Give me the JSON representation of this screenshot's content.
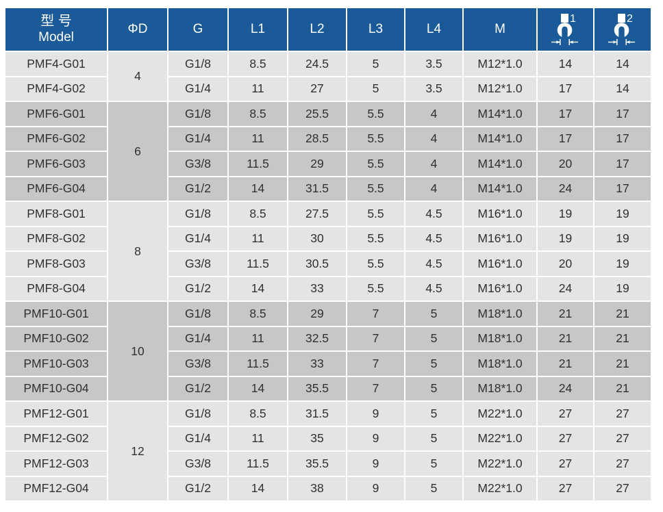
{
  "colors": {
    "page_bg": "#ffffff",
    "header_bg": "#1a5a99",
    "header_text": "#ffffff",
    "row_light": "#e4e4e4",
    "row_dark": "#c7c7c7",
    "body_text": "#303030"
  },
  "table": {
    "header": {
      "model_zh": "型 号",
      "model_en": "Model",
      "phi_d": "ΦD",
      "g": "G",
      "l1": "L1",
      "l2": "L2",
      "l3": "L3",
      "l4": "L4",
      "m": "M",
      "wrench1_label": "1",
      "wrench2_label": "2",
      "wrench_icon_meaning": "open-end-wrench-width-icon"
    }
  },
  "chart_data": {
    "type": "table",
    "columns": [
      "型号/Model",
      "ΦD",
      "G",
      "L1",
      "L2",
      "L3",
      "L4",
      "M",
      "wrench-1",
      "wrench-2"
    ],
    "rows": [
      [
        "PMF4-G01",
        "4",
        "G1/8",
        "8.5",
        "24.5",
        "5",
        "3.5",
        "M12*1.0",
        "14",
        "14"
      ],
      [
        "PMF4-G02",
        "4",
        "G1/4",
        "11",
        "27",
        "5",
        "3.5",
        "M12*1.0",
        "17",
        "14"
      ],
      [
        "PMF6-G01",
        "6",
        "G1/8",
        "8.5",
        "25.5",
        "5.5",
        "4",
        "M14*1.0",
        "17",
        "17"
      ],
      [
        "PMF6-G02",
        "6",
        "G1/4",
        "11",
        "28.5",
        "5.5",
        "4",
        "M14*1.0",
        "17",
        "17"
      ],
      [
        "PMF6-G03",
        "6",
        "G3/8",
        "11.5",
        "29",
        "5.5",
        "4",
        "M14*1.0",
        "20",
        "17"
      ],
      [
        "PMF6-G04",
        "6",
        "G1/2",
        "14",
        "31.5",
        "5.5",
        "4",
        "M14*1.0",
        "24",
        "17"
      ],
      [
        "PMF8-G01",
        "8",
        "G1/8",
        "8.5",
        "27.5",
        "5.5",
        "4.5",
        "M16*1.0",
        "19",
        "19"
      ],
      [
        "PMF8-G02",
        "8",
        "G1/4",
        "11",
        "30",
        "5.5",
        "4.5",
        "M16*1.0",
        "19",
        "19"
      ],
      [
        "PMF8-G03",
        "8",
        "G3/8",
        "11.5",
        "30.5",
        "5.5",
        "4.5",
        "M16*1.0",
        "20",
        "19"
      ],
      [
        "PMF8-G04",
        "8",
        "G1/2",
        "14",
        "33",
        "5.5",
        "4.5",
        "M16*1.0",
        "24",
        "19"
      ],
      [
        "PMF10-G01",
        "10",
        "G1/8",
        "8.5",
        "29",
        "7",
        "5",
        "M18*1.0",
        "21",
        "21"
      ],
      [
        "PMF10-G02",
        "10",
        "G1/4",
        "11",
        "32.5",
        "7",
        "5",
        "M18*1.0",
        "21",
        "21"
      ],
      [
        "PMF10-G03",
        "10",
        "G3/8",
        "11.5",
        "33",
        "7",
        "5",
        "M18*1.0",
        "21",
        "21"
      ],
      [
        "PMF10-G04",
        "10",
        "G1/2",
        "14",
        "35.5",
        "7",
        "5",
        "M18*1.0",
        "24",
        "21"
      ],
      [
        "PMF12-G01",
        "12",
        "G1/8",
        "8.5",
        "31.5",
        "9",
        "5",
        "M22*1.0",
        "27",
        "27"
      ],
      [
        "PMF12-G02",
        "12",
        "G1/4",
        "11",
        "35",
        "9",
        "5",
        "M22*1.0",
        "27",
        "27"
      ],
      [
        "PMF12-G03",
        "12",
        "G3/8",
        "11.5",
        "35.5",
        "9",
        "5",
        "M22*1.0",
        "27",
        "27"
      ],
      [
        "PMF12-G04",
        "12",
        "G1/2",
        "14",
        "38",
        "9",
        "5",
        "M22*1.0",
        "27",
        "27"
      ]
    ]
  }
}
